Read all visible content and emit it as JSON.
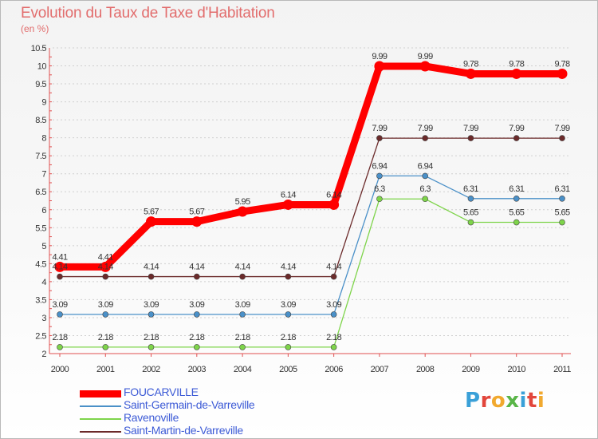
{
  "title": "Evolution du Taux de Taxe d'Habitation",
  "unit": "(en %)",
  "brand": "Proxiti",
  "chart_data": {
    "type": "line",
    "title": "Evolution du Taux de Taxe d'Habitation",
    "ylabel": "(en %)",
    "xlabel": "",
    "x": [
      "2000",
      "2001",
      "2002",
      "2003",
      "2004",
      "2005",
      "2006",
      "2007",
      "2008",
      "2009",
      "2010",
      "2011"
    ],
    "ylim": [
      2,
      10.5
    ],
    "yticks": [
      2,
      2.5,
      3,
      3.5,
      4,
      4.5,
      5,
      5.5,
      6,
      6.5,
      7,
      7.5,
      8,
      8.5,
      9,
      9.5,
      10,
      10.5
    ],
    "grid": "horizontal-dashed",
    "legend": "bottom-left",
    "series": [
      {
        "name": "FOUCARVILLE",
        "color": "#ff0000",
        "values": [
          4.41,
          4.41,
          5.67,
          5.67,
          5.95,
          6.14,
          6.14,
          9.99,
          9.99,
          9.78,
          9.78,
          9.78
        ]
      },
      {
        "name": "Saint-Germain-de-Varreville",
        "color": "#4a90c8",
        "values": [
          3.09,
          3.09,
          3.09,
          3.09,
          3.09,
          3.09,
          3.09,
          6.94,
          6.94,
          6.31,
          6.31,
          6.31
        ]
      },
      {
        "name": "Ravenoville",
        "color": "#7ed44a",
        "values": [
          2.18,
          2.18,
          2.18,
          2.18,
          2.18,
          2.18,
          2.18,
          6.3,
          6.3,
          5.65,
          5.65,
          5.65
        ]
      },
      {
        "name": "Saint-Martin-de-Varreville",
        "color": "#6b2a2a",
        "values": [
          4.14,
          4.14,
          4.14,
          4.14,
          4.14,
          4.14,
          4.14,
          7.99,
          7.99,
          7.99,
          7.99,
          7.99
        ]
      }
    ]
  }
}
